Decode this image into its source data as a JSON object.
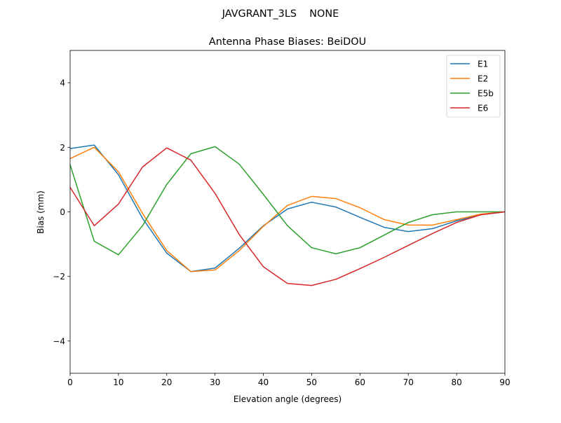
{
  "chart_data": {
    "type": "line",
    "suptitle": "JAVGRANT_3LS    NONE",
    "title": "Antenna Phase Biases: BeiDOU",
    "xlabel": "Elevation angle (degrees)",
    "ylabel": "Bias (mm)",
    "xlim": [
      0,
      90
    ],
    "ylim": [
      -5,
      5
    ],
    "xticks": [
      0,
      10,
      20,
      30,
      40,
      50,
      60,
      70,
      80,
      90
    ],
    "yticks": [
      -4,
      -2,
      0,
      2,
      4
    ],
    "grid": false,
    "legend_position": "top-right",
    "x": [
      0,
      5,
      10,
      15,
      20,
      25,
      30,
      35,
      40,
      45,
      50,
      55,
      60,
      65,
      70,
      75,
      80,
      85,
      90
    ],
    "series": [
      {
        "name": "E1",
        "color": "#1f77b4",
        "values": [
          1.96,
          2.07,
          1.15,
          -0.2,
          -1.28,
          -1.85,
          -1.74,
          -1.13,
          -0.43,
          0.09,
          0.3,
          0.15,
          -0.17,
          -0.48,
          -0.61,
          -0.52,
          -0.28,
          -0.09,
          0
        ]
      },
      {
        "name": "E2",
        "color": "#ff7f0e",
        "values": [
          1.65,
          2.0,
          1.24,
          -0.05,
          -1.2,
          -1.85,
          -1.8,
          -1.2,
          -0.45,
          0.2,
          0.48,
          0.41,
          0.13,
          -0.24,
          -0.41,
          -0.41,
          -0.24,
          -0.07,
          0
        ]
      },
      {
        "name": "E5b",
        "color": "#2ca02c",
        "values": [
          1.46,
          -0.91,
          -1.33,
          -0.43,
          0.85,
          1.8,
          2.02,
          1.48,
          0.54,
          -0.43,
          -1.11,
          -1.3,
          -1.11,
          -0.72,
          -0.33,
          -0.09,
          0.0,
          0.0,
          0
        ]
      },
      {
        "name": "E6",
        "color": "#d62728",
        "values": [
          0.76,
          -0.43,
          0.24,
          1.39,
          1.98,
          1.6,
          0.57,
          -0.7,
          -1.7,
          -2.22,
          -2.28,
          -2.09,
          -1.76,
          -1.41,
          -1.04,
          -0.67,
          -0.33,
          -0.09,
          0
        ]
      }
    ]
  }
}
